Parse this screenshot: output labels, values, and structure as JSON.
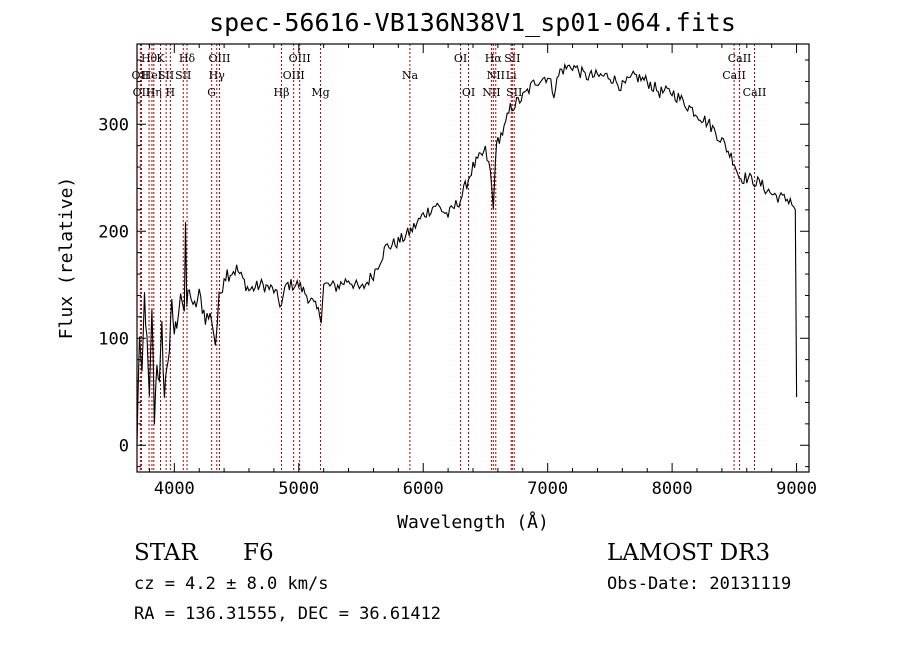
{
  "chart_data": {
    "type": "line",
    "title": "spec-56616-VB136N38V1_sp01-064.fits",
    "xlabel": "Wavelength (Å)",
    "ylabel": "Flux (relative)",
    "xlim": [
      3700,
      9100
    ],
    "ylim": [
      -25,
      375
    ],
    "xticks": [
      4000,
      5000,
      6000,
      7000,
      8000,
      9000
    ],
    "yticks": [
      0,
      100,
      200,
      300
    ],
    "grid": false,
    "series": [
      {
        "name": "flux",
        "x": [
          3700,
          3720,
          3740,
          3760,
          3780,
          3800,
          3820,
          3840,
          3860,
          3880,
          3900,
          3920,
          3940,
          3960,
          3980,
          4000,
          4020,
          4050,
          4080,
          4090,
          4100,
          4120,
          4150,
          4200,
          4250,
          4300,
          4330,
          4360,
          4400,
          4500,
          4600,
          4700,
          4800,
          4860,
          4900,
          5000,
          5100,
          5180,
          5200,
          5300,
          5400,
          5500,
          5600,
          5700,
          5800,
          5900,
          6000,
          6100,
          6200,
          6300,
          6400,
          6500,
          6540,
          6563,
          6580,
          6600,
          6650,
          6700,
          6800,
          6900,
          7000,
          7050,
          7100,
          7200,
          7300,
          7400,
          7500,
          7600,
          7700,
          7800,
          7900,
          8000,
          8100,
          8200,
          8300,
          8400,
          8500,
          8540,
          8600,
          8700,
          8800,
          8900,
          8950,
          8990,
          9000
        ],
        "y": [
          0,
          105,
          60,
          140,
          95,
          40,
          130,
          25,
          80,
          55,
          110,
          45,
          75,
          90,
          130,
          105,
          115,
          145,
          125,
          200,
          130,
          150,
          125,
          140,
          120,
          120,
          95,
          135,
          160,
          165,
          145,
          150,
          145,
          130,
          150,
          150,
          135,
          120,
          150,
          148,
          155,
          145,
          160,
          185,
          190,
          200,
          215,
          225,
          215,
          230,
          260,
          275,
          255,
          220,
          270,
          285,
          295,
          315,
          325,
          340,
          345,
          330,
          350,
          355,
          345,
          345,
          345,
          335,
          345,
          340,
          330,
          330,
          320,
          310,
          300,
          285,
          265,
          250,
          250,
          245,
          235,
          230,
          230,
          220,
          45
        ]
      }
    ],
    "lines": [
      {
        "x": 3727,
        "label": "OII",
        "row": 2
      },
      {
        "x": 3736,
        "label": "OII",
        "row": 3
      },
      {
        "x": 3797,
        "label": "Hθ",
        "row": 1
      },
      {
        "x": 3820,
        "label": "HeI",
        "row": 2
      },
      {
        "x": 3835,
        "label": "Hη",
        "row": 3
      },
      {
        "x": 3889,
        "label": "K",
        "row": 1
      },
      {
        "x": 3934,
        "label": "SII",
        "row": 2
      },
      {
        "x": 3968,
        "label": "H",
        "row": 3
      },
      {
        "x": 4102,
        "label": "Hδ",
        "row": 1
      },
      {
        "x": 4072,
        "label": "SII",
        "row": 2
      },
      {
        "x": 4300,
        "label": "G",
        "row": 3
      },
      {
        "x": 4341,
        "label": "Hγ",
        "row": 2
      },
      {
        "x": 4363,
        "label": "OIII",
        "row": 1
      },
      {
        "x": 4861,
        "label": "Hβ",
        "row": 3
      },
      {
        "x": 4959,
        "label": "OIII",
        "row": 2
      },
      {
        "x": 5007,
        "label": "OIII",
        "row": 1
      },
      {
        "x": 5175,
        "label": "Mg",
        "row": 3
      },
      {
        "x": 5893,
        "label": "Na",
        "row": 2
      },
      {
        "x": 6300,
        "label": "OI",
        "row": 1
      },
      {
        "x": 6364,
        "label": "OI",
        "row": 3
      },
      {
        "x": 6548,
        "label": "NII",
        "row": 3
      },
      {
        "x": 6563,
        "label": "Hα",
        "row": 1
      },
      {
        "x": 6583,
        "label": "NII",
        "row": 2
      },
      {
        "x": 6707,
        "label": "Li",
        "row": 2
      },
      {
        "x": 6716,
        "label": "SII",
        "row": 1
      },
      {
        "x": 6731,
        "label": "SII",
        "row": 3
      },
      {
        "x": 8498,
        "label": "CaII",
        "row": 2
      },
      {
        "x": 8542,
        "label": "CaII",
        "row": 1
      },
      {
        "x": 8662,
        "label": "CaII",
        "row": 3
      }
    ]
  },
  "info": {
    "object_class": "STAR",
    "subclass": "F6",
    "survey": "LAMOST DR3",
    "cz": "cz = 4.2 ± 8.0 km/s",
    "obs_date": "Obs-Date: 20131119",
    "coords": "RA = 136.31555, DEC =  36.61412"
  }
}
